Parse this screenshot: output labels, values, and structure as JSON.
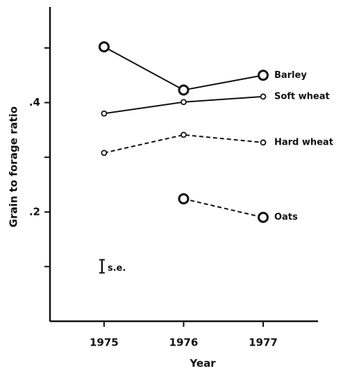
{
  "chart_data": {
    "type": "line",
    "x_label": "Year",
    "y_label": "Grain to forage ratio",
    "x": [
      1975,
      1976,
      1977
    ],
    "xlim": [
      1974.32,
      1977.69
    ],
    "xticks": [
      1975,
      1976,
      1977
    ],
    "ylim": [
      0,
      0.575
    ],
    "yticks": [
      {
        "value": 0.2,
        "label": ".2"
      },
      {
        "value": 0.4,
        "label": ".4"
      }
    ],
    "minor_yticks": [
      0.1,
      0.3,
      0.5
    ],
    "grid": false,
    "series": [
      {
        "name": "Barley",
        "color": "#111111",
        "line_style": "solid",
        "marker": "large",
        "values": [
          0.502,
          0.423,
          0.45
        ]
      },
      {
        "name": "Soft wheat",
        "color": "#111111",
        "line_style": "solid",
        "marker": "small",
        "values": [
          0.38,
          0.401,
          0.411
        ]
      },
      {
        "name": "Hard wheat",
        "color": "#111111",
        "line_style": "dashed",
        "marker": "small",
        "values": [
          0.308,
          0.341,
          0.327
        ]
      },
      {
        "name": "Oats",
        "color": "#111111",
        "line_style": "dashed",
        "marker": "large",
        "values": [
          null,
          0.224,
          0.19
        ]
      }
    ],
    "se_bar": {
      "label": "s.e.",
      "value": 0.024
    }
  }
}
